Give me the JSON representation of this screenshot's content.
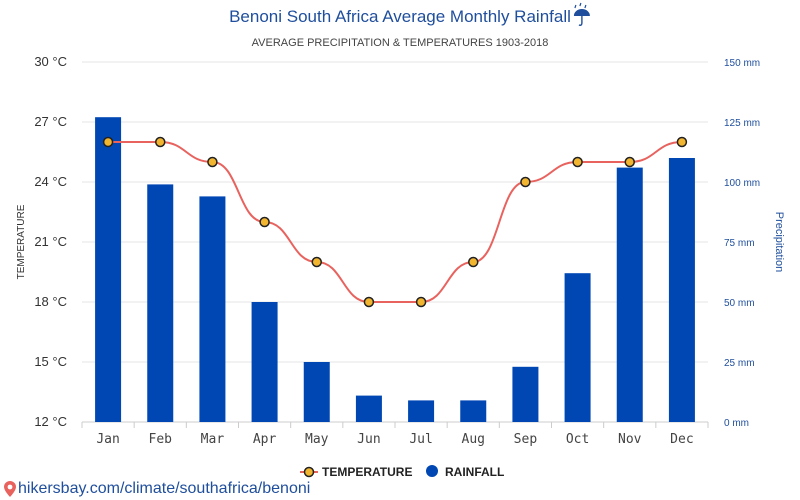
{
  "chart_data": {
    "type": "bar+line",
    "title": "Benoni South Africa Average Monthly Rainfall",
    "title_icon": "umbrella-rain-icon",
    "subtitle": "AVERAGE PRECIPITATION & TEMPERATURES 1903-2018",
    "categories": [
      "Jan",
      "Feb",
      "Mar",
      "Apr",
      "May",
      "Jun",
      "Jul",
      "Aug",
      "Sep",
      "Oct",
      "Nov",
      "Dec"
    ],
    "series": [
      {
        "name": "TEMPERATURE",
        "type": "line",
        "axis": "left",
        "unit": "°C",
        "values": [
          26,
          26,
          25,
          22,
          20,
          18,
          18,
          20,
          24,
          25,
          25,
          26
        ]
      },
      {
        "name": "RAINFALL",
        "type": "bar",
        "axis": "right",
        "unit": "mm",
        "values": [
          127,
          99,
          94,
          50,
          25,
          11,
          9,
          9,
          23,
          62,
          106,
          110
        ]
      }
    ],
    "y_left": {
      "label": "TEMPERATURE",
      "ylim": [
        12,
        30
      ],
      "ticks": [
        "12 °C",
        "15 °C",
        "18 °C",
        "21 °C",
        "24 °C",
        "27 °C",
        "30 °C"
      ]
    },
    "y_right": {
      "label": "Precipitation",
      "ylim": [
        0,
        150
      ],
      "ticks": [
        "0 mm",
        "25 mm",
        "50 mm",
        "75 mm",
        "100 mm",
        "125 mm",
        "150 mm"
      ]
    },
    "grid": true,
    "legend_position": "bottom-center",
    "colors": {
      "bar": "#0047b3",
      "line": "#e8625e",
      "marker_fill": "#f2b530",
      "marker_stroke": "#222222",
      "title": "#1f4e9c",
      "grid": "#e6e6e6"
    }
  },
  "footer": {
    "text": "hikersbay.com/climate/southafrica/benoni",
    "icon": "location-pin-icon"
  }
}
